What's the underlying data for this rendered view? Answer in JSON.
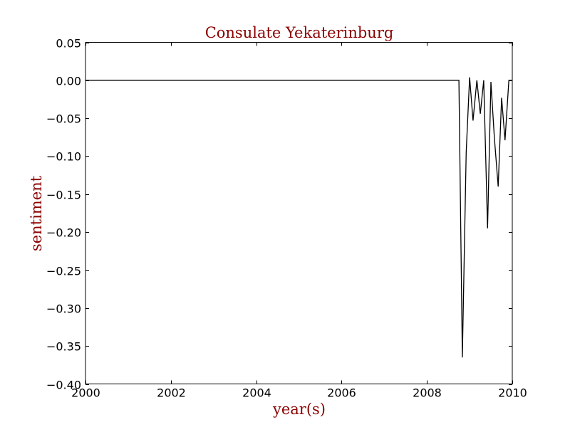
{
  "chart_data": {
    "type": "line",
    "title": "Consulate Yekaterinburg",
    "xlabel": "year(s)",
    "ylabel": "sentiment",
    "xlim": [
      2000,
      2010
    ],
    "ylim": [
      -0.4,
      0.05
    ],
    "xticks": [
      2000,
      2002,
      2004,
      2006,
      2008,
      2010
    ],
    "xtick_labels": [
      "2000",
      "2002",
      "2004",
      "2006",
      "2008",
      "2010"
    ],
    "yticks": [
      0.05,
      0.0,
      -0.05,
      -0.1,
      -0.15,
      -0.2,
      -0.25,
      -0.3,
      -0.35,
      -0.4
    ],
    "ytick_labels": [
      "0.05",
      "0.00",
      "−0.05",
      "−0.10",
      "−0.15",
      "−0.20",
      "−0.25",
      "−0.30",
      "−0.35",
      "−0.40"
    ],
    "grid": false,
    "legend": "none",
    "line_color": "#000000",
    "label_color": "#8b0000",
    "series": [
      {
        "x": [
          2000.0,
          2008.75,
          2008.83,
          2008.92,
          2009.0,
          2009.08,
          2009.17,
          2009.25,
          2009.33,
          2009.42,
          2009.5,
          2009.58,
          2009.67,
          2009.75,
          2009.83,
          2009.92,
          2010.0
        ],
        "y": [
          0.0,
          0.0,
          -0.365,
          -0.095,
          0.004,
          -0.053,
          0.0,
          -0.044,
          0.0,
          -0.195,
          -0.002,
          -0.075,
          -0.14,
          -0.023,
          -0.079,
          0.0,
          0.0
        ]
      }
    ]
  }
}
